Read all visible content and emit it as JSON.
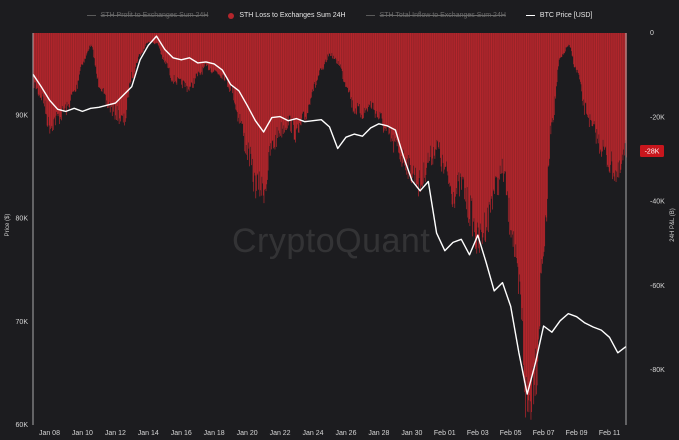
{
  "legend": [
    {
      "label": "STH Profit to Exchanges Sum 24H",
      "enabled": false,
      "color": "#5a5a5a",
      "shape": "line"
    },
    {
      "label": "STH Loss to Exchanges Sum 24H",
      "enabled": true,
      "color": "#b4262c",
      "shape": "dot"
    },
    {
      "label": "STH Total Inflow to Exchanges Sum 24H",
      "enabled": false,
      "color": "#5a5a5a",
      "shape": "line"
    },
    {
      "label": "BTC Price [USD]",
      "enabled": true,
      "color": "#ffffff",
      "shape": "line"
    }
  ],
  "watermark": "CryptoQuant",
  "colors": {
    "background": "#1c1c1f",
    "loss_fill": "#b4262c",
    "price_line": "#ffffff",
    "current_badge": "#c8161d"
  },
  "chart_data": {
    "type": "bar",
    "title": "",
    "grid": false,
    "x_ticks": [
      "Jan 08",
      "Jan 10",
      "Jan 12",
      "Jan 14",
      "Jan 16",
      "Jan 18",
      "Jan 20",
      "Jan 22",
      "Jan 24",
      "Jan 26",
      "Jan 28",
      "Jan 30",
      "Feb 01",
      "Feb 03",
      "Feb 05",
      "Feb 07",
      "Feb 09",
      "Feb 11"
    ],
    "left_axis": {
      "label": "Price ($)",
      "ticks": [
        "90K",
        "80K",
        "70K",
        "60K"
      ],
      "ylim": [
        60000,
        98000
      ]
    },
    "right_axis": {
      "label": "24H P&L (B)",
      "ticks": [
        "0",
        "-20K",
        "-40K",
        "-60K",
        "-80K"
      ],
      "ylim": [
        -93000,
        0
      ]
    },
    "current_value_label": "-28K",
    "series": [
      {
        "name": "STH Loss to Exchanges Sum 24H",
        "axis": "right",
        "points": [
          [
            "2026-01-07 00:00",
            -12000
          ],
          [
            "2026-01-07 12:00",
            -15000
          ],
          [
            "2026-01-08 00:00",
            -22000
          ],
          [
            "2026-01-08 12:00",
            -20000
          ],
          [
            "2026-01-09 00:00",
            -18000
          ],
          [
            "2026-01-09 12:00",
            -14000
          ],
          [
            "2026-01-10 00:00",
            -7000
          ],
          [
            "2026-01-10 12:00",
            -3000
          ],
          [
            "2026-01-11 00:00",
            -12000
          ],
          [
            "2026-01-11 12:00",
            -17000
          ],
          [
            "2026-01-12 00:00",
            -19000
          ],
          [
            "2026-01-12 12:00",
            -21000
          ],
          [
            "2026-01-13 00:00",
            -10000
          ],
          [
            "2026-01-13 12:00",
            -5000
          ],
          [
            "2026-01-14 00:00",
            -2000
          ],
          [
            "2026-01-14 12:00",
            -2500
          ],
          [
            "2026-01-15 00:00",
            -7000
          ],
          [
            "2026-01-15 12:00",
            -11000
          ],
          [
            "2026-01-16 00:00",
            -12000
          ],
          [
            "2026-01-16 12:00",
            -13000
          ],
          [
            "2026-01-17 00:00",
            -10000
          ],
          [
            "2026-01-17 12:00",
            -8000
          ],
          [
            "2026-01-18 00:00",
            -9000
          ],
          [
            "2026-01-18 12:00",
            -10000
          ],
          [
            "2026-01-19 00:00",
            -13000
          ],
          [
            "2026-01-19 12:00",
            -20000
          ],
          [
            "2026-01-20 00:00",
            -28000
          ],
          [
            "2026-01-20 12:00",
            -36000
          ],
          [
            "2026-01-21 00:00",
            -37000
          ],
          [
            "2026-01-21 12:00",
            -27000
          ],
          [
            "2026-01-22 00:00",
            -23000
          ],
          [
            "2026-01-22 12:00",
            -21000
          ],
          [
            "2026-01-23 00:00",
            -24000
          ],
          [
            "2026-01-23 12:00",
            -20000
          ],
          [
            "2026-01-24 00:00",
            -13000
          ],
          [
            "2026-01-24 12:00",
            -9000
          ],
          [
            "2026-01-25 00:00",
            -5000
          ],
          [
            "2026-01-25 12:00",
            -7000
          ],
          [
            "2026-01-26 00:00",
            -12000
          ],
          [
            "2026-01-26 12:00",
            -18000
          ],
          [
            "2026-01-27 00:00",
            -19000
          ],
          [
            "2026-01-27 12:00",
            -17000
          ],
          [
            "2026-01-28 00:00",
            -20000
          ],
          [
            "2026-01-28 12:00",
            -24000
          ],
          [
            "2026-01-29 00:00",
            -27000
          ],
          [
            "2026-01-29 12:00",
            -30000
          ],
          [
            "2026-01-30 00:00",
            -33000
          ],
          [
            "2026-01-30 12:00",
            -36000
          ],
          [
            "2026-01-31 00:00",
            -30000
          ],
          [
            "2026-01-31 12:00",
            -27000
          ],
          [
            "2026-02-01 00:00",
            -33000
          ],
          [
            "2026-02-01 12:00",
            -38000
          ],
          [
            "2026-02-02 00:00",
            -36000
          ],
          [
            "2026-02-02 12:00",
            -42000
          ],
          [
            "2026-02-03 00:00",
            -50000
          ],
          [
            "2026-02-03 12:00",
            -45000
          ],
          [
            "2026-02-04 00:00",
            -37000
          ],
          [
            "2026-02-04 12:00",
            -33000
          ],
          [
            "2026-02-05 00:00",
            -45000
          ],
          [
            "2026-02-05 12:00",
            -62000
          ],
          [
            "2026-02-06 00:00",
            -89000
          ],
          [
            "2026-02-06 12:00",
            -79000
          ],
          [
            "2026-02-07 00:00",
            -50000
          ],
          [
            "2026-02-07 12:00",
            -20000
          ],
          [
            "2026-02-08 00:00",
            -6000
          ],
          [
            "2026-02-08 12:00",
            -3000
          ],
          [
            "2026-02-09 00:00",
            -9000
          ],
          [
            "2026-02-09 12:00",
            -18000
          ],
          [
            "2026-02-10 00:00",
            -23000
          ],
          [
            "2026-02-10 12:00",
            -27000
          ],
          [
            "2026-02-11 00:00",
            -31000
          ],
          [
            "2026-02-11 12:00",
            -34000
          ],
          [
            "2026-02-12 00:00",
            -28000
          ]
        ]
      },
      {
        "name": "BTC Price [USD]",
        "axis": "left",
        "points": [
          [
            "2026-01-07 00:00",
            94000
          ],
          [
            "2026-01-07 12:00",
            92800
          ],
          [
            "2026-01-08 00:00",
            91500
          ],
          [
            "2026-01-08 12:00",
            90600
          ],
          [
            "2026-01-09 00:00",
            90400
          ],
          [
            "2026-01-09 12:00",
            90700
          ],
          [
            "2026-01-10 00:00",
            90400
          ],
          [
            "2026-01-10 12:00",
            90700
          ],
          [
            "2026-01-11 00:00",
            90800
          ],
          [
            "2026-01-11 12:00",
            91000
          ],
          [
            "2026-01-12 00:00",
            91200
          ],
          [
            "2026-01-12 12:00",
            92000
          ],
          [
            "2026-01-13 00:00",
            92800
          ],
          [
            "2026-01-13 12:00",
            95400
          ],
          [
            "2026-01-14 00:00",
            96800
          ],
          [
            "2026-01-14 12:00",
            97700
          ],
          [
            "2026-01-15 00:00",
            96400
          ],
          [
            "2026-01-15 12:00",
            95600
          ],
          [
            "2026-01-16 00:00",
            95400
          ],
          [
            "2026-01-16 12:00",
            95600
          ],
          [
            "2026-01-17 00:00",
            95100
          ],
          [
            "2026-01-17 12:00",
            95200
          ],
          [
            "2026-01-18 00:00",
            95000
          ],
          [
            "2026-01-18 12:00",
            94400
          ],
          [
            "2026-01-19 00:00",
            93000
          ],
          [
            "2026-01-19 12:00",
            92400
          ],
          [
            "2026-01-20 00:00",
            91000
          ],
          [
            "2026-01-20 12:00",
            89500
          ],
          [
            "2026-01-21 00:00",
            88400
          ],
          [
            "2026-01-21 12:00",
            89800
          ],
          [
            "2026-01-22 00:00",
            89900
          ],
          [
            "2026-01-22 12:00",
            89500
          ],
          [
            "2026-01-23 00:00",
            89700
          ],
          [
            "2026-01-23 12:00",
            89400
          ],
          [
            "2026-01-24 00:00",
            89500
          ],
          [
            "2026-01-24 12:00",
            89600
          ],
          [
            "2026-01-25 00:00",
            88900
          ],
          [
            "2026-01-25 12:00",
            86800
          ],
          [
            "2026-01-26 00:00",
            87900
          ],
          [
            "2026-01-26 12:00",
            88200
          ],
          [
            "2026-01-27 00:00",
            88000
          ],
          [
            "2026-01-27 12:00",
            88800
          ],
          [
            "2026-01-28 00:00",
            89200
          ],
          [
            "2026-01-28 12:00",
            89000
          ],
          [
            "2026-01-29 00:00",
            88600
          ],
          [
            "2026-01-29 12:00",
            86000
          ],
          [
            "2026-01-30 00:00",
            83700
          ],
          [
            "2026-01-30 12:00",
            82700
          ],
          [
            "2026-01-31 00:00",
            83600
          ],
          [
            "2026-01-31 12:00",
            78600
          ],
          [
            "2026-02-01 00:00",
            76900
          ],
          [
            "2026-02-01 12:00",
            77700
          ],
          [
            "2026-02-02 00:00",
            78000
          ],
          [
            "2026-02-02 12:00",
            76500
          ],
          [
            "2026-02-03 00:00",
            78400
          ],
          [
            "2026-02-03 12:00",
            75800
          ],
          [
            "2026-02-04 00:00",
            73000
          ],
          [
            "2026-02-04 12:00",
            73800
          ],
          [
            "2026-02-05 00:00",
            71500
          ],
          [
            "2026-02-05 12:00",
            67000
          ],
          [
            "2026-02-06 00:00",
            63000
          ],
          [
            "2026-02-06 12:00",
            66000
          ],
          [
            "2026-02-07 00:00",
            69600
          ],
          [
            "2026-02-07 12:00",
            69000
          ],
          [
            "2026-02-08 00:00",
            70100
          ],
          [
            "2026-02-08 12:00",
            70800
          ],
          [
            "2026-02-09 00:00",
            70500
          ],
          [
            "2026-02-09 12:00",
            69900
          ],
          [
            "2026-02-10 00:00",
            69500
          ],
          [
            "2026-02-10 12:00",
            69200
          ],
          [
            "2026-02-11 00:00",
            68500
          ],
          [
            "2026-02-11 12:00",
            67000
          ],
          [
            "2026-02-12 00:00",
            67600
          ]
        ]
      }
    ]
  }
}
